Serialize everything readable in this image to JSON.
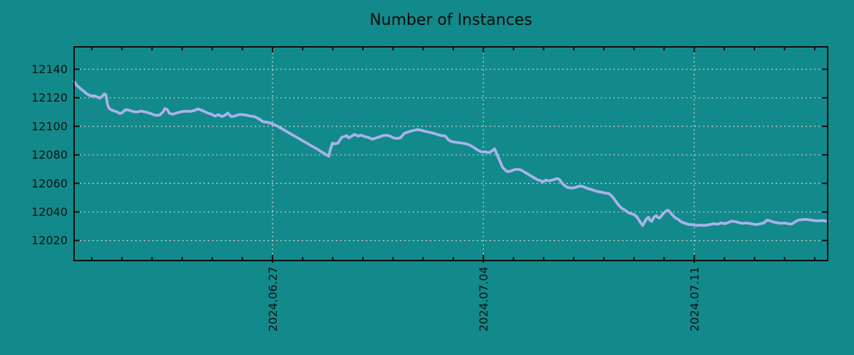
{
  "chart_data": {
    "type": "line",
    "title": "Number of Instances",
    "xlabel": "",
    "ylabel": "",
    "legend": false,
    "grid": true,
    "colors": {
      "background": "#128a8b",
      "line": "#aab2ec",
      "grid": "#c9c9c9",
      "axis": "#0d0d0d",
      "text": "#111111"
    },
    "x_axis": {
      "unit": "days since 2024-06-20",
      "xlim_days": [
        0.41,
        25.43
      ],
      "major_ticks": [
        {
          "label": "2024.06.27",
          "day": 7
        },
        {
          "label": "2024.07.04",
          "day": 14
        },
        {
          "label": "2024.07.11",
          "day": 21
        }
      ],
      "minor_tick_days": [
        1,
        2,
        3,
        4,
        5,
        6,
        8,
        9,
        10,
        11,
        12,
        13,
        15,
        16,
        17,
        18,
        19,
        20,
        22,
        23,
        24,
        25
      ]
    },
    "y_axis": {
      "ticks": [
        12020,
        12040,
        12060,
        12080,
        12100,
        12120,
        12140
      ],
      "ylim": [
        12005.9,
        12155.7
      ]
    },
    "series": [
      {
        "name": "instances",
        "points": [
          [
            0.41,
            12131.5
          ],
          [
            0.5,
            12128.7
          ],
          [
            0.6,
            12127.0
          ],
          [
            0.67,
            12125.7
          ],
          [
            0.74,
            12124.5
          ],
          [
            0.83,
            12122.8
          ],
          [
            0.9,
            12122.0
          ],
          [
            0.98,
            12121.2
          ],
          [
            1.07,
            12121.5
          ],
          [
            1.14,
            12120.8
          ],
          [
            1.21,
            12120.3
          ],
          [
            1.26,
            12119.8
          ],
          [
            1.33,
            12120.7
          ],
          [
            1.42,
            12122.8
          ],
          [
            1.47,
            12122.0
          ],
          [
            1.52,
            12115.5
          ],
          [
            1.57,
            12112.8
          ],
          [
            1.61,
            12112.0
          ],
          [
            1.68,
            12111.2
          ],
          [
            1.78,
            12110.5
          ],
          [
            1.85,
            12110.0
          ],
          [
            1.92,
            12109.0
          ],
          [
            2.01,
            12109.5
          ],
          [
            2.09,
            12111.2
          ],
          [
            2.16,
            12111.7
          ],
          [
            2.25,
            12111.2
          ],
          [
            2.32,
            12110.7
          ],
          [
            2.39,
            12110.3
          ],
          [
            2.49,
            12110.0
          ],
          [
            2.56,
            12110.3
          ],
          [
            2.63,
            12110.7
          ],
          [
            2.72,
            12110.3
          ],
          [
            2.8,
            12110.0
          ],
          [
            2.87,
            12109.5
          ],
          [
            2.96,
            12109.0
          ],
          [
            3.03,
            12108.3
          ],
          [
            3.1,
            12107.8
          ],
          [
            3.2,
            12107.7
          ],
          [
            3.27,
            12108.2
          ],
          [
            3.36,
            12110.0
          ],
          [
            3.43,
            12112.5
          ],
          [
            3.5,
            12111.8
          ],
          [
            3.58,
            12109.0
          ],
          [
            3.69,
            12108.5
          ],
          [
            3.81,
            12109.3
          ],
          [
            3.93,
            12110.0
          ],
          [
            4.05,
            12110.5
          ],
          [
            4.17,
            12110.5
          ],
          [
            4.28,
            12110.5
          ],
          [
            4.4,
            12111.0
          ],
          [
            4.52,
            12112.2
          ],
          [
            4.61,
            12111.5
          ],
          [
            4.73,
            12110.5
          ],
          [
            4.85,
            12109.3
          ],
          [
            4.97,
            12108.5
          ],
          [
            5.09,
            12107.2
          ],
          [
            5.21,
            12108.2
          ],
          [
            5.32,
            12106.8
          ],
          [
            5.42,
            12107.7
          ],
          [
            5.51,
            12109.3
          ],
          [
            5.63,
            12106.8
          ],
          [
            5.75,
            12107.2
          ],
          [
            5.87,
            12108.2
          ],
          [
            5.99,
            12108.2
          ],
          [
            6.13,
            12107.8
          ],
          [
            6.27,
            12107.2
          ],
          [
            6.41,
            12106.8
          ],
          [
            6.55,
            12105.2
          ],
          [
            6.69,
            12103.2
          ],
          [
            6.86,
            12102.7
          ],
          [
            7.0,
            12101.8
          ],
          [
            7.17,
            12100.0
          ],
          [
            7.33,
            12098.0
          ],
          [
            7.5,
            12096.0
          ],
          [
            7.66,
            12094.0
          ],
          [
            7.83,
            12092.0
          ],
          [
            7.99,
            12090.0
          ],
          [
            8.16,
            12088.0
          ],
          [
            8.32,
            12086.0
          ],
          [
            8.49,
            12084.0
          ],
          [
            8.65,
            12081.8
          ],
          [
            8.77,
            12080.3
          ],
          [
            8.87,
            12079.0
          ],
          [
            8.91,
            12083.0
          ],
          [
            8.99,
            12088.3
          ],
          [
            9.06,
            12087.7
          ],
          [
            9.17,
            12088.2
          ],
          [
            9.29,
            12092.2
          ],
          [
            9.46,
            12093.5
          ],
          [
            9.53,
            12091.8
          ],
          [
            9.62,
            12093.0
          ],
          [
            9.72,
            12094.3
          ],
          [
            9.84,
            12093.2
          ],
          [
            9.95,
            12093.8
          ],
          [
            10.07,
            12092.7
          ],
          [
            10.19,
            12092.2
          ],
          [
            10.31,
            12091.0
          ],
          [
            10.43,
            12091.8
          ],
          [
            10.54,
            12092.5
          ],
          [
            10.66,
            12093.5
          ],
          [
            10.78,
            12093.8
          ],
          [
            10.9,
            12093.2
          ],
          [
            11.02,
            12091.8
          ],
          [
            11.14,
            12091.5
          ],
          [
            11.25,
            12092.0
          ],
          [
            11.37,
            12095.0
          ],
          [
            11.49,
            12096.0
          ],
          [
            11.61,
            12096.8
          ],
          [
            11.73,
            12097.3
          ],
          [
            11.82,
            12097.7
          ],
          [
            11.94,
            12097.2
          ],
          [
            12.06,
            12096.5
          ],
          [
            12.18,
            12096.0
          ],
          [
            12.29,
            12095.5
          ],
          [
            12.41,
            12094.8
          ],
          [
            12.51,
            12094.0
          ],
          [
            12.62,
            12093.5
          ],
          [
            12.74,
            12093.2
          ],
          [
            12.84,
            12090.5
          ],
          [
            12.95,
            12089.3
          ],
          [
            13.07,
            12088.8
          ],
          [
            13.19,
            12088.5
          ],
          [
            13.31,
            12088.2
          ],
          [
            13.43,
            12087.7
          ],
          [
            13.55,
            12086.8
          ],
          [
            13.66,
            12085.5
          ],
          [
            13.78,
            12083.8
          ],
          [
            13.88,
            12082.6
          ],
          [
            13.97,
            12082.0
          ],
          [
            14.06,
            12082.2
          ],
          [
            14.16,
            12081.5
          ],
          [
            14.25,
            12082.2
          ],
          [
            14.37,
            12084.3
          ],
          [
            14.44,
            12081.0
          ],
          [
            14.54,
            12076.0
          ],
          [
            14.63,
            12071.5
          ],
          [
            14.73,
            12069.3
          ],
          [
            14.8,
            12068.2
          ],
          [
            14.89,
            12068.5
          ],
          [
            14.99,
            12069.3
          ],
          [
            15.08,
            12069.8
          ],
          [
            15.18,
            12069.8
          ],
          [
            15.27,
            12069.2
          ],
          [
            15.36,
            12068.0
          ],
          [
            15.48,
            12066.5
          ],
          [
            15.6,
            12065.0
          ],
          [
            15.72,
            12063.5
          ],
          [
            15.81,
            12062.5
          ],
          [
            15.91,
            12061.8
          ],
          [
            15.98,
            12061.0
          ],
          [
            16.07,
            12062.3
          ],
          [
            16.17,
            12061.8
          ],
          [
            16.26,
            12062.2
          ],
          [
            16.36,
            12062.8
          ],
          [
            16.45,
            12063.5
          ],
          [
            16.52,
            12062.8
          ],
          [
            16.62,
            12060.0
          ],
          [
            16.71,
            12058.3
          ],
          [
            16.81,
            12057.0
          ],
          [
            16.92,
            12056.7
          ],
          [
            17.04,
            12057.0
          ],
          [
            17.14,
            12057.8
          ],
          [
            17.23,
            12058.2
          ],
          [
            17.35,
            12057.5
          ],
          [
            17.47,
            12056.3
          ],
          [
            17.59,
            12055.7
          ],
          [
            17.7,
            12054.8
          ],
          [
            17.82,
            12054.2
          ],
          [
            17.94,
            12053.7
          ],
          [
            18.06,
            12053.2
          ],
          [
            18.18,
            12052.8
          ],
          [
            18.29,
            12050.5
          ],
          [
            18.41,
            12047.0
          ],
          [
            18.51,
            12044.2
          ],
          [
            18.6,
            12042.5
          ],
          [
            18.7,
            12041.3
          ],
          [
            18.81,
            12039.5
          ],
          [
            18.91,
            12038.7
          ],
          [
            19.0,
            12038.2
          ],
          [
            19.1,
            12036.5
          ],
          [
            19.19,
            12033.3
          ],
          [
            19.29,
            12030.5
          ],
          [
            19.36,
            12033.3
          ],
          [
            19.43,
            12035.5
          ],
          [
            19.48,
            12036.2
          ],
          [
            19.52,
            12034.5
          ],
          [
            19.59,
            12033.3
          ],
          [
            19.66,
            12036.2
          ],
          [
            19.74,
            12037.5
          ],
          [
            19.78,
            12036.2
          ],
          [
            19.85,
            12035.7
          ],
          [
            19.93,
            12037.8
          ],
          [
            20.0,
            12039.5
          ],
          [
            20.09,
            12041.0
          ],
          [
            20.14,
            12041.2
          ],
          [
            20.21,
            12039.5
          ],
          [
            20.28,
            12037.8
          ],
          [
            20.35,
            12036.2
          ],
          [
            20.45,
            12035.0
          ],
          [
            20.52,
            12033.8
          ],
          [
            20.59,
            12032.8
          ],
          [
            20.68,
            12032.2
          ],
          [
            20.75,
            12031.7
          ],
          [
            20.82,
            12031.2
          ],
          [
            20.92,
            12031.2
          ],
          [
            20.99,
            12030.8
          ],
          [
            21.11,
            12030.5
          ],
          [
            21.23,
            12030.8
          ],
          [
            21.32,
            12030.5
          ],
          [
            21.41,
            12030.8
          ],
          [
            21.53,
            12031.2
          ],
          [
            21.65,
            12031.8
          ],
          [
            21.77,
            12031.3
          ],
          [
            21.89,
            12032.3
          ],
          [
            22.01,
            12031.8
          ],
          [
            22.12,
            12032.5
          ],
          [
            22.24,
            12033.5
          ],
          [
            22.36,
            12033.2
          ],
          [
            22.48,
            12032.5
          ],
          [
            22.6,
            12032.0
          ],
          [
            22.71,
            12032.3
          ],
          [
            22.83,
            12032.0
          ],
          [
            22.95,
            12031.5
          ],
          [
            23.07,
            12031.2
          ],
          [
            23.19,
            12031.7
          ],
          [
            23.31,
            12032.3
          ],
          [
            23.42,
            12034.3
          ],
          [
            23.52,
            12033.7
          ],
          [
            23.64,
            12032.8
          ],
          [
            23.75,
            12032.5
          ],
          [
            23.87,
            12032.0
          ],
          [
            23.99,
            12032.3
          ],
          [
            24.11,
            12031.8
          ],
          [
            24.23,
            12031.5
          ],
          [
            24.34,
            12032.8
          ],
          [
            24.44,
            12034.2
          ],
          [
            24.56,
            12034.5
          ],
          [
            24.68,
            12034.8
          ],
          [
            24.79,
            12034.5
          ],
          [
            24.91,
            12034.2
          ],
          [
            25.03,
            12033.8
          ],
          [
            25.15,
            12033.7
          ],
          [
            25.27,
            12034.0
          ],
          [
            25.36,
            12033.6
          ],
          [
            25.43,
            12033.5
          ]
        ]
      }
    ]
  }
}
